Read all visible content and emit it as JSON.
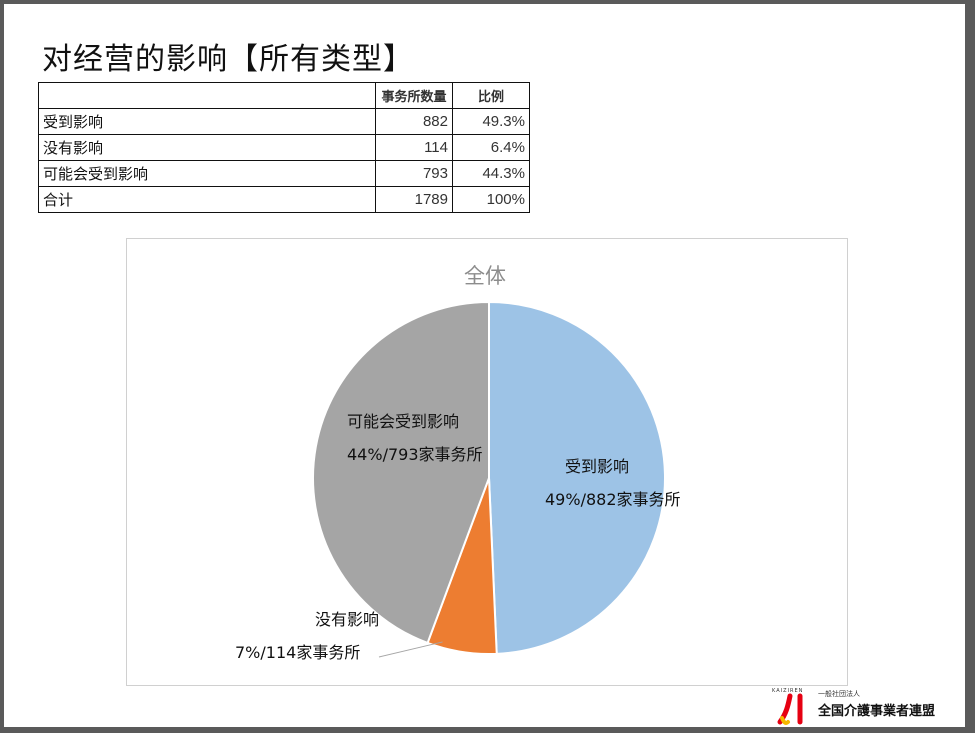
{
  "title": "对经营的影响【所有类型】",
  "table": {
    "headers": [
      "",
      "事务所数量",
      "比例"
    ],
    "rows": [
      [
        "受到影响",
        "882",
        "49.3%"
      ],
      [
        "没有影响",
        "114",
        "6.4%"
      ],
      [
        "可能会受到影响",
        "793",
        "44.3%"
      ],
      [
        "合计",
        "1789",
        "100%"
      ]
    ]
  },
  "chart_data": {
    "type": "pie",
    "title": "全体",
    "slices": [
      {
        "name": "受到影响",
        "value": 882,
        "label": "49%/882家事务所",
        "color": "#9dc3e6"
      },
      {
        "name": "没有影响",
        "value": 114,
        "label": "7%/114家事务所",
        "color": "#ed7d31"
      },
      {
        "name": "可能会受到影响",
        "value": 793,
        "label": "44%/793家事务所",
        "color": "#a5a5a5"
      }
    ]
  },
  "logo": {
    "caps": "KAIZIREN",
    "small": "一般社団法人",
    "name": "全国介護事業者連盟",
    "colors": [
      "#e60012",
      "#f5b800"
    ]
  }
}
